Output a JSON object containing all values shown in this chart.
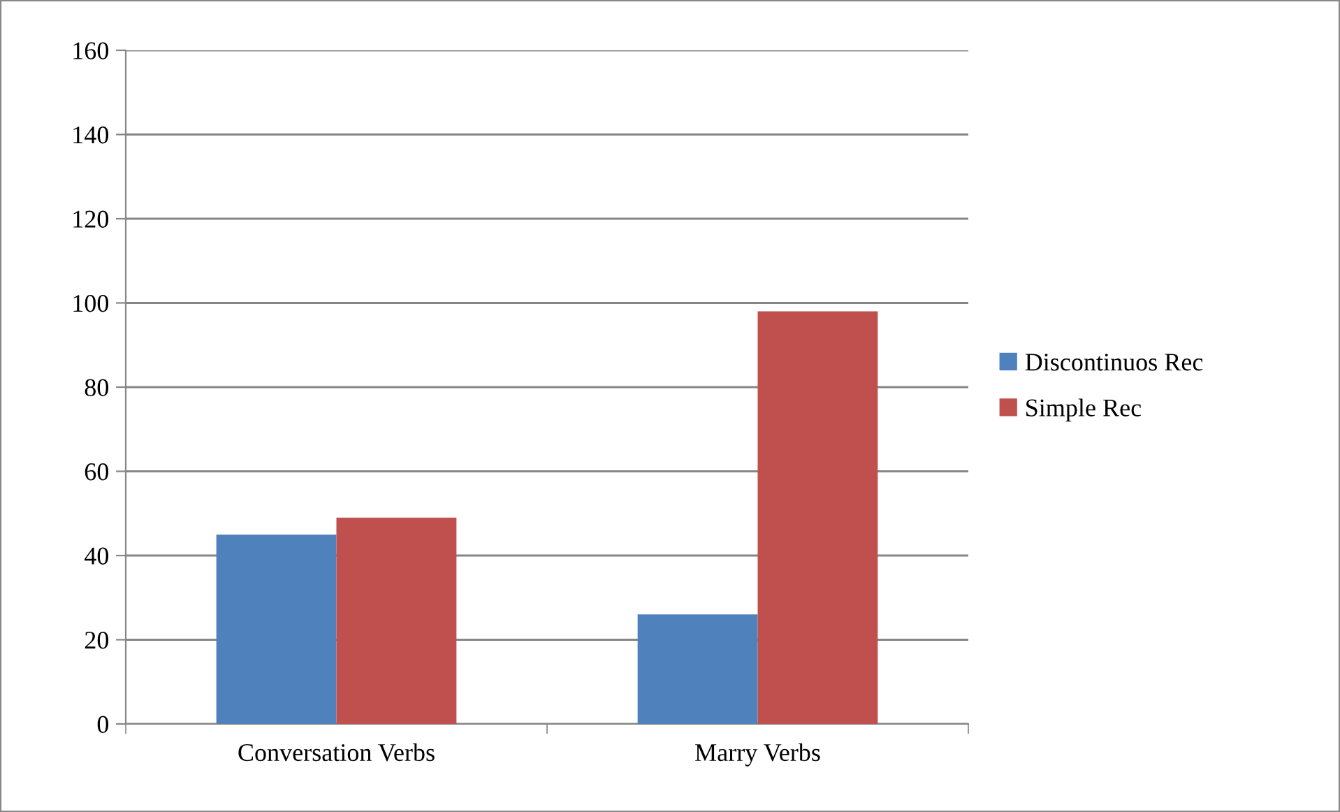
{
  "chart_data": {
    "type": "bar",
    "categories": [
      "Conversation Verbs",
      "Marry Verbs"
    ],
    "series": [
      {
        "name": "Discontinuos Rec",
        "color": "#4f81bd",
        "values": [
          45,
          26
        ]
      },
      {
        "name": "Simple Rec",
        "color": "#c0504d",
        "values": [
          49,
          98
        ]
      }
    ],
    "ylim": [
      0,
      160
    ],
    "yticks": [
      0,
      20,
      40,
      60,
      80,
      100,
      120,
      140,
      160
    ],
    "grid": "y",
    "legend": "right"
  }
}
